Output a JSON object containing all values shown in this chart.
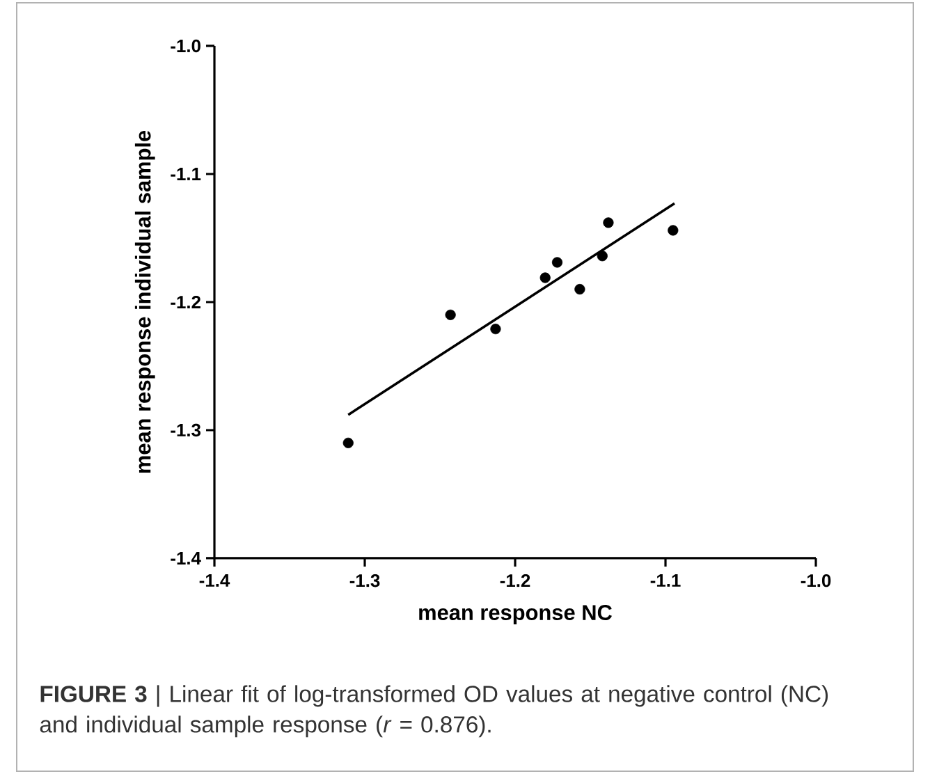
{
  "chart_data": {
    "type": "scatter",
    "xlabel": "mean response NC",
    "ylabel": "mean response individual sample",
    "annotations": [
      "**FIGURE 3** | Linear fit of log-transformed OD values at negative control (NC) and individual sample response (*r* = 0.876)."
    ],
    "xlim": [
      -1.4,
      -1.0
    ],
    "xticks": [
      -1.4,
      -1.3,
      -1.2,
      -1.1,
      {
        "value": -1.0,
        "label": "-1.0"
      }
    ],
    "ylim": [
      -1.4,
      -1.0
    ],
    "yticks": [
      -1.4,
      -1.3,
      -1.2,
      -1.1,
      {
        "value": -1.0,
        "label": "-1.0"
      }
    ],
    "series": [
      {
        "marker": "circle",
        "color": "#000000",
        "x": [
          -1.311,
          -1.243,
          -1.213,
          -1.18,
          -1.172,
          -1.157,
          -1.142,
          -1.138,
          -1.095
        ],
        "values": [
          -1.31,
          -1.21,
          -1.221,
          -1.181,
          -1.169,
          -1.19,
          -1.164,
          -1.138,
          -1.144
        ]
      },
      {
        "type": "line",
        "color": "#000000",
        "marker": "none",
        "line_style": "solid",
        "x": [
          -1.311,
          -1.094
        ],
        "values": [
          -1.288,
          -1.123
        ]
      }
    ]
  }
}
